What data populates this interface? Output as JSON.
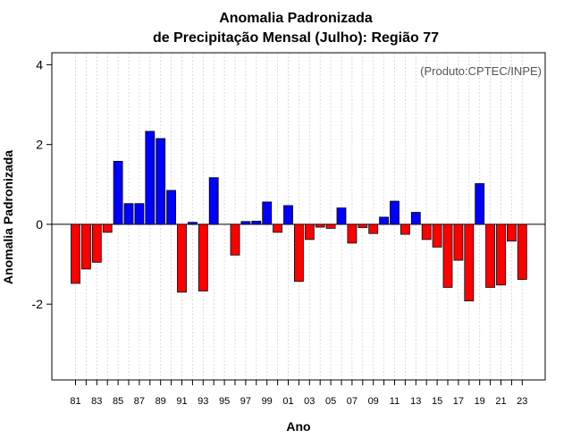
{
  "chart_data": {
    "type": "bar",
    "title": "Anomalia Padronizada",
    "subtitle": "de Precipitação Mensal (Julho): Região 77",
    "xlabel": "Ano",
    "ylabel": "Anomalia Padronizada",
    "credit": "(Produto:CPTEC/INPE)",
    "ylim": [
      -3.9,
      4.3
    ],
    "yticks": [
      -2,
      0,
      2,
      4
    ],
    "ytick_labels": [
      "-2",
      "0",
      "2",
      "4"
    ],
    "xtick_labels": [
      "81",
      "83",
      "85",
      "87",
      "89",
      "91",
      "93",
      "95",
      "97",
      "99",
      "01",
      "03",
      "05",
      "07",
      "09",
      "11",
      "13",
      "15",
      "17",
      "19",
      "21",
      "23"
    ],
    "categories": [
      "81",
      "82",
      "83",
      "84",
      "85",
      "86",
      "87",
      "88",
      "89",
      "90",
      "91",
      "92",
      "93",
      "94",
      "95",
      "96",
      "97",
      "98",
      "99",
      "00",
      "01",
      "02",
      "03",
      "04",
      "05",
      "06",
      "07",
      "08",
      "09",
      "10",
      "11",
      "12",
      "13",
      "14",
      "15",
      "16",
      "17",
      "18",
      "19",
      "20",
      "21",
      "22",
      "23"
    ],
    "values": [
      -1.48,
      -1.12,
      -0.95,
      -0.2,
      1.58,
      0.52,
      0.52,
      2.33,
      2.15,
      0.85,
      -1.7,
      0.05,
      -1.67,
      1.17,
      0,
      -0.77,
      0.07,
      0.08,
      0.56,
      -0.2,
      0.47,
      -1.43,
      -0.38,
      -0.07,
      -0.1,
      0.41,
      -0.47,
      -0.08,
      -0.23,
      0.18,
      0.58,
      -0.25,
      0.3,
      -0.38,
      -0.57,
      -1.58,
      -0.9,
      -1.92,
      1.02,
      -1.58,
      -1.52,
      -0.42,
      -1.38
    ],
    "colors": {
      "positive": "#0000ff",
      "negative": "#ff0000"
    }
  }
}
